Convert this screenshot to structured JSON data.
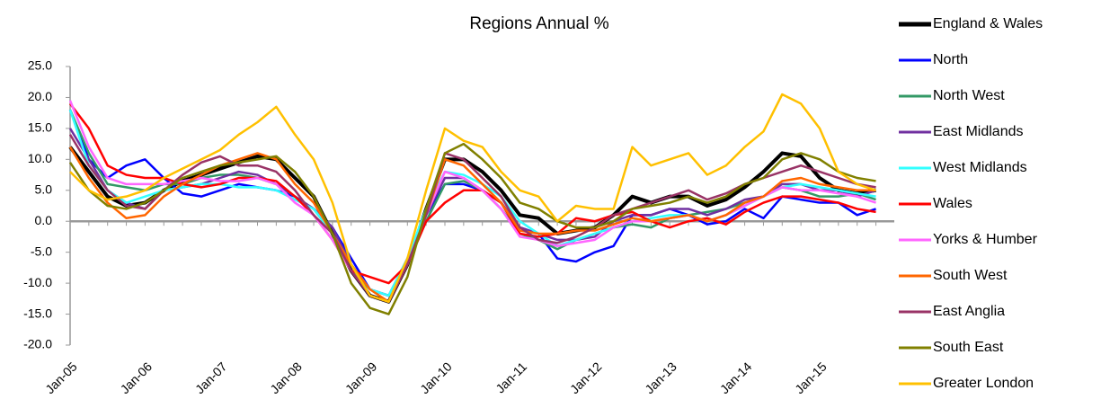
{
  "chart_data": {
    "type": "line",
    "title": "Regions Annual %",
    "categories": [
      "Jan-05",
      null,
      null,
      null,
      "Jan-06",
      null,
      null,
      null,
      "Jan-07",
      null,
      null,
      null,
      "Jan-08",
      null,
      null,
      null,
      "Jan-09",
      null,
      null,
      null,
      "Jan-10",
      null,
      null,
      null,
      "Jan-11",
      null,
      null,
      null,
      "Jan-12",
      null,
      null,
      null,
      "Jan-13",
      null,
      null,
      null,
      "Jan-14",
      null,
      null,
      null,
      "Jan-15",
      null,
      null,
      null
    ],
    "ylim": [
      -20,
      25
    ],
    "yticks": [
      {
        "value": -20,
        "label": "-20.0"
      },
      {
        "value": -15,
        "label": "-15.0"
      },
      {
        "value": -10,
        "label": "-10.0"
      },
      {
        "value": -5,
        "label": "-5.0"
      },
      {
        "value": 0,
        "label": "0.0"
      },
      {
        "value": 5,
        "label": "5.0"
      },
      {
        "value": 10,
        "label": "10.0"
      },
      {
        "value": 15,
        "label": "15.0"
      },
      {
        "value": 20,
        "label": "20.0"
      },
      {
        "value": 25,
        "label": "25.0"
      }
    ],
    "grid": false,
    "legend": "right",
    "series": [
      {
        "name": "England & Wales",
        "color": "#000000",
        "values": [
          12,
          8,
          4,
          2.5,
          3,
          5,
          6.5,
          7.5,
          8.5,
          9.5,
          10.5,
          10,
          7,
          4,
          -2,
          -8,
          -12,
          -13,
          -7,
          2,
          10,
          10,
          8,
          5,
          1,
          0.5,
          -2,
          -1.5,
          -1,
          1,
          4,
          3,
          4,
          4,
          2.5,
          3.5,
          5.5,
          8,
          11,
          10.5,
          7,
          5,
          4.5,
          5
        ]
      },
      {
        "name": "North",
        "color": "#0000ff",
        "values": [
          18,
          10,
          7,
          9,
          10,
          7,
          4.5,
          4,
          5,
          6,
          5.5,
          5,
          4,
          2,
          -1,
          -6,
          -11,
          -12,
          -7,
          1,
          6,
          6,
          5,
          3,
          -1,
          -2,
          -6,
          -6.5,
          -5,
          -4,
          1,
          1,
          2,
          1,
          -0.5,
          0,
          2,
          0.5,
          4,
          3.5,
          3,
          3,
          1,
          2
        ]
      },
      {
        "name": "North West",
        "color": "#339966",
        "values": [
          18,
          11,
          6,
          5.5,
          5,
          6,
          6,
          7,
          7.5,
          7.5,
          7,
          6,
          4,
          2,
          -2,
          -8,
          -11,
          -12,
          -7,
          0,
          6,
          6.5,
          5,
          2,
          -2,
          -3,
          -4.5,
          -3,
          -2,
          -1,
          -0.5,
          -1,
          0.5,
          1,
          1.5,
          2,
          3,
          4,
          5.5,
          5,
          4,
          4,
          4.5,
          3.5
        ]
      },
      {
        "name": "East Midlands",
        "color": "#7030a0",
        "values": [
          15,
          10,
          5,
          3,
          2,
          5,
          5.5,
          6,
          7,
          8,
          7.5,
          6,
          4,
          2,
          -1,
          -7,
          -11,
          -12,
          -6,
          1,
          7,
          7,
          5,
          3,
          -1,
          -2,
          -3,
          -3,
          -2.5,
          0,
          1,
          1,
          2,
          2,
          1,
          2,
          3.5,
          4,
          6,
          6,
          5,
          5,
          4,
          5
        ]
      },
      {
        "name": "West Midlands",
        "color": "#33ffff",
        "values": [
          18,
          9,
          5,
          3,
          4,
          5,
          5.5,
          6,
          6,
          5.5,
          5.5,
          5,
          3.5,
          2,
          -2,
          -7,
          -11,
          -12,
          -6,
          2,
          8,
          7.5,
          6,
          4,
          0,
          -2,
          -4,
          -3,
          -2,
          -1,
          0,
          0.5,
          1,
          1,
          0,
          1,
          2.5,
          4,
          5.5,
          6,
          5.5,
          5,
          4.5,
          4
        ]
      },
      {
        "name": "Wales",
        "color": "#ff0000",
        "values": [
          19,
          15,
          9,
          7.5,
          7,
          7,
          6,
          5.5,
          6,
          7,
          7,
          6.5,
          4,
          1,
          -3,
          -8,
          -9,
          -10,
          -7,
          0,
          3,
          5,
          5,
          3,
          -2,
          -2.5,
          -2,
          0.5,
          0,
          1,
          1.5,
          0,
          -1,
          0,
          0.5,
          -0.5,
          1.5,
          3,
          4,
          4,
          3.5,
          3,
          2,
          1.5
        ]
      },
      {
        "name": "Yorks & Humber",
        "color": "#ff66ff",
        "values": [
          19.5,
          12,
          7,
          6,
          6,
          6,
          6.5,
          7,
          6.5,
          6.5,
          7,
          6,
          3,
          1,
          -3,
          -8,
          -12,
          -13,
          -7,
          1,
          8,
          7,
          5,
          2,
          -2.5,
          -3,
          -4,
          -3.5,
          -3,
          -1,
          0,
          0,
          0.5,
          1,
          0,
          1,
          2.5,
          4,
          5.5,
          5,
          5,
          4.5,
          4,
          3
        ]
      },
      {
        "name": "South West",
        "color": "#ff6600",
        "values": [
          12,
          7,
          3,
          0.5,
          1,
          4,
          6,
          7.5,
          9,
          10,
          11,
          10,
          6,
          3,
          -2,
          -7,
          -11,
          -13,
          -7,
          1,
          10,
          9,
          6,
          3,
          -1.5,
          -2,
          -2,
          -1.5,
          -1.5,
          -0.5,
          0.5,
          0,
          0.5,
          1,
          0,
          1,
          3,
          4,
          6.5,
          7,
          6,
          5.5,
          5,
          5
        ]
      },
      {
        "name": "East Anglia",
        "color": "#993366",
        "values": [
          14,
          9,
          5,
          2.5,
          2,
          5,
          7.5,
          9.5,
          10.5,
          9,
          9,
          8,
          5,
          1,
          -2,
          -8,
          -12,
          -13,
          -7,
          1,
          11,
          10,
          7,
          4,
          -1,
          -3,
          -3.5,
          -2.5,
          -1,
          1,
          2,
          3,
          4,
          5,
          3.5,
          4.5,
          6,
          7,
          8,
          9,
          8,
          7,
          6,
          5.5
        ]
      },
      {
        "name": "South East",
        "color": "#808000",
        "values": [
          9.5,
          5,
          2.5,
          2,
          3,
          5,
          7,
          8,
          9,
          9.5,
          10,
          10.5,
          8,
          4,
          -2,
          -10,
          -14,
          -15,
          -9,
          2,
          11,
          12.5,
          10,
          7,
          3,
          2,
          0,
          -1,
          -1,
          0,
          2,
          2.5,
          3,
          4,
          3,
          4,
          6,
          7,
          10,
          11,
          10,
          8,
          7,
          6.5
        ]
      },
      {
        "name": "Greater London",
        "color": "#ffc000",
        "values": [
          8,
          5,
          3.5,
          4,
          5,
          7,
          8.5,
          10,
          11.5,
          14,
          16,
          18.5,
          14,
          10,
          3,
          -7,
          -12,
          -13,
          -6,
          5,
          15,
          13,
          12,
          8,
          5,
          4,
          0,
          2.5,
          2,
          2,
          12,
          9,
          10,
          11,
          7.5,
          9,
          12,
          14.5,
          20.5,
          19,
          15,
          8,
          6,
          5
        ]
      }
    ]
  }
}
